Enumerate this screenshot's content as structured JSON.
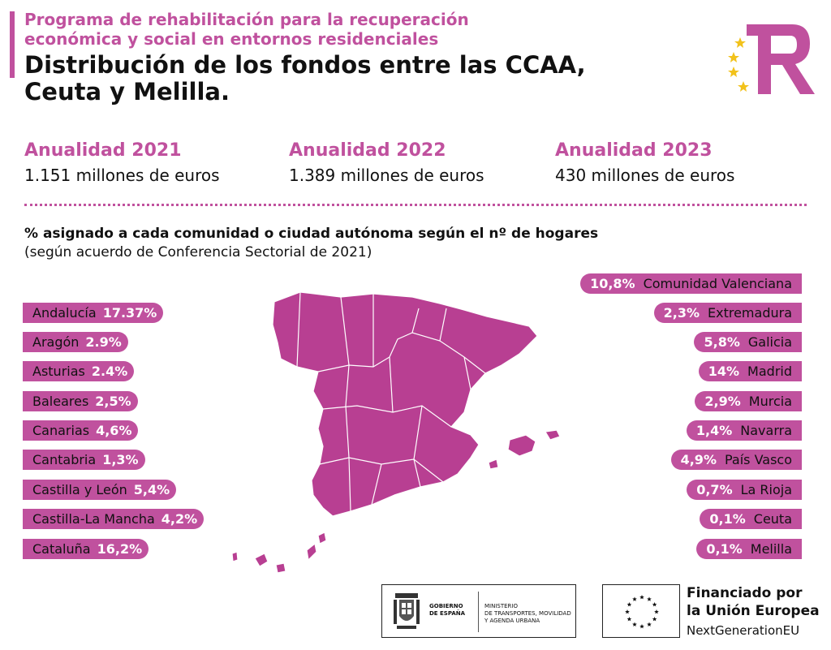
{
  "header": {
    "subtitle_line1": "Programa de rehabilitación para la recuperación",
    "subtitle_line2": "económica y social en entornos residenciales",
    "title_line1": "Distribución de los fondos entre las CCAA,",
    "title_line2": "Ceuta y Melilla."
  },
  "annualities": [
    {
      "year": "Anualidad 2021",
      "amount": "1.151 millones de euros"
    },
    {
      "year": "Anualidad 2022",
      "amount": "1.389 millones de euros"
    },
    {
      "year": "Anualidad 2023",
      "amount": "430 millones de euros"
    }
  ],
  "section": {
    "heading": "% asignado a cada comunidad o ciudad autónoma según el nº de hogares",
    "subheading": "(según acuerdo de Conferencia Sectorial de 2021)"
  },
  "left_regions": [
    {
      "name": "Andalucía",
      "pct": "17.37%"
    },
    {
      "name": "Aragón",
      "pct": "2.9%"
    },
    {
      "name": "Asturias",
      "pct": "2.4%"
    },
    {
      "name": "Baleares",
      "pct": "2,5%"
    },
    {
      "name": "Canarias",
      "pct": "4,6%"
    },
    {
      "name": "Cantabria",
      "pct": "1,3%"
    },
    {
      "name": "Castilla y León",
      "pct": "5,4%"
    },
    {
      "name": "Castilla-La Mancha",
      "pct": "4,2%"
    },
    {
      "name": "Cataluña",
      "pct": "16,2%"
    }
  ],
  "right_regions": [
    {
      "name": "Comunidad Valenciana",
      "pct": "10,8%"
    },
    {
      "name": "Extremadura",
      "pct": "2,3%"
    },
    {
      "name": "Galicia",
      "pct": "5,8%"
    },
    {
      "name": "Madrid",
      "pct": "14%"
    },
    {
      "name": "Murcia",
      "pct": "2,9%"
    },
    {
      "name": "Navarra",
      "pct": "1,4%"
    },
    {
      "name": "País Vasco",
      "pct": "4,9%"
    },
    {
      "name": "La Rioja",
      "pct": "0,7%"
    },
    {
      "name": "Ceuta",
      "pct": "0,1%"
    },
    {
      "name": "Melilla",
      "pct": "0,1%"
    }
  ],
  "footer": {
    "gov_name_1": "GOBIERNO",
    "gov_name_2": "DE ESPAÑA",
    "ministry_1": "MINISTERIO",
    "ministry_2": "DE TRANSPORTES, MOVILIDAD",
    "ministry_3": "Y AGENDA URBANA",
    "eu_line1": "Financiado por",
    "eu_line2": "la Unión Europea",
    "eu_line3": "NextGenerationEU"
  },
  "colors": {
    "accent": "#c0519e",
    "map_fill": "#b83f92",
    "eu_star": "#f2c21b"
  },
  "icons": {
    "tr_logo": "tr-logo-icon",
    "map": "spain-map",
    "crest": "coat-of-arms-icon",
    "eu_flag": "eu-flag-icon"
  }
}
